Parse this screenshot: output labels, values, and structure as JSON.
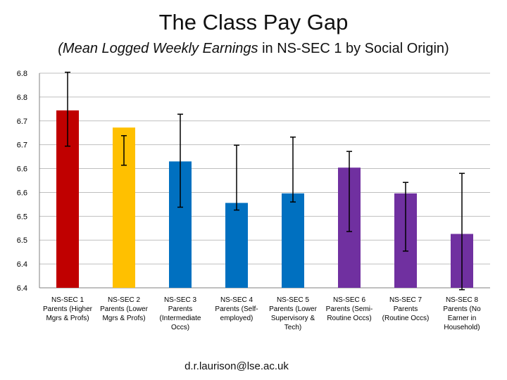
{
  "chart_data": {
    "type": "bar",
    "title": "The Class Pay Gap",
    "subtitle_italic": "(Mean Logged Weekly Earnings",
    "subtitle_rest": " in NS-SEC 1 by Social Origin)",
    "y_tick_labels": [
      "6.8",
      "6.8",
      "6.7",
      "6.7",
      "6.6",
      "6.6",
      "6.5",
      "6.5",
      "6.4",
      "6.4"
    ],
    "ylim": [
      6.4,
      6.85
    ],
    "grid": true,
    "categories": [
      [
        "NS-SEC 1",
        "Parents (Higher",
        "Mgrs & Profs)"
      ],
      [
        "NS-SEC 2",
        "Parents (Lower",
        "Mgrs & Profs)"
      ],
      [
        "NS-SEC 3",
        "Parents",
        "(Intermediate",
        "Occs)"
      ],
      [
        "NS-SEC 4",
        "Parents (Self-",
        "employed)"
      ],
      [
        "NS-SEC 5",
        "Parents (Lower",
        "Supervisory &",
        "Tech)"
      ],
      [
        "NS-SEC 6",
        "Parents (Semi-",
        "Routine Occs)"
      ],
      [
        "NS-SEC 7",
        "Parents",
        "(Routine Occs)"
      ],
      [
        "NS-SEC 8",
        "Parents (No",
        "Earner in",
        "Household)"
      ]
    ],
    "values": [
      6.772,
      6.736,
      6.665,
      6.578,
      6.598,
      6.652,
      6.598,
      6.513
    ],
    "error_low": [
      6.697,
      6.657,
      6.569,
      6.563,
      6.58,
      6.518,
      6.477,
      6.396
    ],
    "error_high": [
      6.852,
      6.719,
      6.764,
      6.699,
      6.716,
      6.686,
      6.621,
      6.64
    ],
    "colors": [
      "#c00000",
      "#ffc000",
      "#0070c0",
      "#0070c0",
      "#0070c0",
      "#7030a0",
      "#7030a0",
      "#7030a0"
    ]
  },
  "footer": "d.r.laurison@lse.ac.uk"
}
